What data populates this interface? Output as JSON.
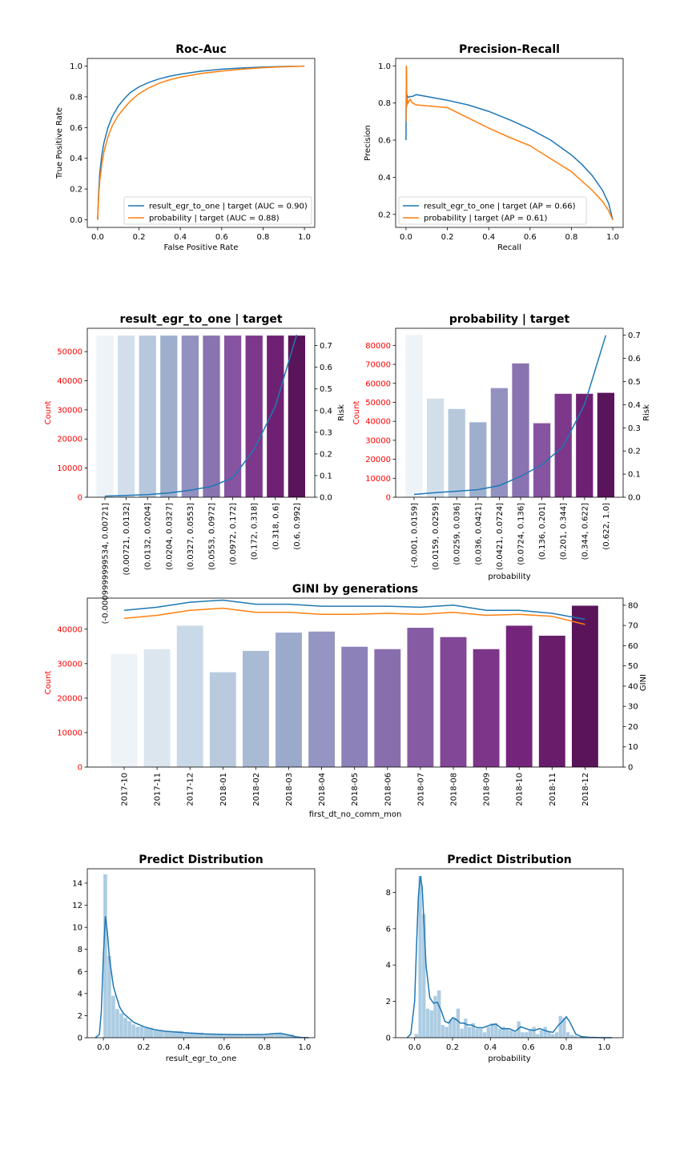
{
  "colors": {
    "blue": "#1f77b4",
    "orange": "#ff7f0e",
    "red": "#ff0000",
    "hist": "#9ec3dd",
    "kde": "#1f77b4"
  },
  "chart_data": [
    {
      "id": "roc",
      "type": "line",
      "title": "Roc-Auc",
      "xlabel": "False Positive Rate",
      "ylabel": "True Positive Rate",
      "xlim": [
        -0.05,
        1.05
      ],
      "ylim": [
        -0.05,
        1.05
      ],
      "xticks": [
        0.0,
        0.2,
        0.4,
        0.6,
        0.8,
        1.0
      ],
      "yticks": [
        0.0,
        0.2,
        0.4,
        0.6,
        0.8,
        1.0
      ],
      "tick_labels_x": [
        "0.0",
        "0.2",
        "0.4",
        "0.6",
        "0.8",
        "1.0"
      ],
      "tick_labels_y": [
        "0.0",
        "0.2",
        "0.4",
        "0.6",
        "0.8",
        "1.0"
      ],
      "legend": "lower right",
      "series": [
        {
          "name": "result_egr_to_one | target (AUC = 0.90)",
          "color": "#1f77b4",
          "x": [
            0,
            0.005,
            0.01,
            0.02,
            0.03,
            0.05,
            0.07,
            0.1,
            0.13,
            0.16,
            0.2,
            0.25,
            0.3,
            0.35,
            0.4,
            0.5,
            0.6,
            0.7,
            0.8,
            0.9,
            1.0
          ],
          "y": [
            0,
            0.18,
            0.3,
            0.42,
            0.5,
            0.6,
            0.67,
            0.74,
            0.79,
            0.83,
            0.865,
            0.895,
            0.918,
            0.935,
            0.948,
            0.967,
            0.98,
            0.988,
            0.994,
            0.998,
            1.0
          ]
        },
        {
          "name": "probability | target (AUC = 0.88)",
          "color": "#ff7f0e",
          "x": [
            0,
            0.005,
            0.01,
            0.02,
            0.03,
            0.05,
            0.07,
            0.1,
            0.13,
            0.16,
            0.2,
            0.25,
            0.3,
            0.35,
            0.4,
            0.5,
            0.6,
            0.7,
            0.8,
            0.9,
            1.0
          ],
          "y": [
            0,
            0.15,
            0.25,
            0.36,
            0.44,
            0.54,
            0.61,
            0.68,
            0.73,
            0.775,
            0.82,
            0.86,
            0.89,
            0.912,
            0.928,
            0.952,
            0.968,
            0.98,
            0.99,
            0.996,
            1.0
          ]
        }
      ]
    },
    {
      "id": "pr",
      "type": "line",
      "title": "Precision-Recall",
      "xlabel": "Recall",
      "ylabel": "Precision",
      "xlim": [
        -0.05,
        1.05
      ],
      "ylim": [
        0.13,
        1.04
      ],
      "xticks": [
        0.0,
        0.2,
        0.4,
        0.6,
        0.8,
        1.0
      ],
      "yticks": [
        0.2,
        0.4,
        0.6,
        0.8,
        1.0
      ],
      "tick_labels_x": [
        "0.0",
        "0.2",
        "0.4",
        "0.6",
        "0.8",
        "1.0"
      ],
      "tick_labels_y": [
        "0.2",
        "0.4",
        "0.6",
        "0.8",
        "1.0"
      ],
      "legend": "lower left",
      "series": [
        {
          "name": "result_egr_to_one | target (AP = 0.66)",
          "color": "#1f77b4",
          "x": [
            0,
            0.002,
            0.004,
            0.006,
            0.01,
            0.02,
            0.03,
            0.05,
            0.1,
            0.2,
            0.3,
            0.4,
            0.5,
            0.6,
            0.7,
            0.8,
            0.85,
            0.9,
            0.95,
            0.98,
            1.0
          ],
          "y": [
            0.6,
            1.0,
            0.82,
            0.84,
            0.83,
            0.835,
            0.835,
            0.845,
            0.835,
            0.815,
            0.79,
            0.755,
            0.71,
            0.66,
            0.6,
            0.52,
            0.47,
            0.41,
            0.33,
            0.26,
            0.17
          ]
        },
        {
          "name": "probability | target (AP = 0.61)",
          "color": "#ff7f0e",
          "x": [
            0,
            0.002,
            0.004,
            0.006,
            0.01,
            0.02,
            0.03,
            0.05,
            0.1,
            0.2,
            0.3,
            0.4,
            0.5,
            0.6,
            0.7,
            0.8,
            0.85,
            0.9,
            0.95,
            0.98,
            1.0
          ],
          "y": [
            0.7,
            1.0,
            0.78,
            0.82,
            0.8,
            0.82,
            0.8,
            0.79,
            0.785,
            0.775,
            0.72,
            0.665,
            0.615,
            0.57,
            0.5,
            0.43,
            0.38,
            0.33,
            0.27,
            0.22,
            0.17
          ]
        }
      ]
    },
    {
      "id": "bins1",
      "type": "bar",
      "title": "result_egr_to_one | target",
      "xlabel": "",
      "ylabel": "Count",
      "y2label": "Risk",
      "categories": [
        "(-0.0009999999534, 0.00721]",
        "(0.00721, 0.0132]",
        "(0.0132, 0.0204]",
        "(0.0204, 0.0327]",
        "(0.0327, 0.0553]",
        "(0.0553, 0.0972]",
        "(0.0972, 0.172]",
        "(0.172, 0.318]",
        "(0.318, 0.6]",
        "(0.6, 0.992]"
      ],
      "values": [
        55500,
        55500,
        55500,
        55500,
        55500,
        55500,
        55500,
        55500,
        55500,
        55500
      ],
      "risk": [
        0.005,
        0.008,
        0.012,
        0.02,
        0.032,
        0.05,
        0.09,
        0.22,
        0.42,
        0.75
      ],
      "ylim": [
        0,
        58000
      ],
      "y2lim": [
        0,
        0.78
      ],
      "yticks": [
        0,
        10000,
        20000,
        30000,
        40000,
        50000
      ],
      "y2ticks": [
        0,
        0.1,
        0.2,
        0.3,
        0.4,
        0.5,
        0.6,
        0.7
      ],
      "tick_labels_y": [
        "0",
        "10000",
        "20000",
        "30000",
        "40000",
        "50000"
      ],
      "tick_labels_y2": [
        "0.0",
        "0.1",
        "0.2",
        "0.3",
        "0.4",
        "0.5",
        "0.6",
        "0.7"
      ]
    },
    {
      "id": "bins2",
      "type": "bar",
      "title": "probability | target",
      "xlabel": "probability",
      "ylabel": "Count",
      "y2label": "Risk",
      "categories": [
        "(-0.001, 0.0159]",
        "(0.0159, 0.0259]",
        "(0.0259, 0.036]",
        "(0.036, 0.0421]",
        "(0.0421, 0.0724]",
        "(0.0724, 0.136]",
        "(0.136, 0.201]",
        "(0.201, 0.344]",
        "(0.344, 0.622]",
        "(0.622, 1.0]"
      ],
      "values": [
        85500,
        52000,
        46500,
        39500,
        57500,
        70500,
        39000,
        54500,
        54500,
        55000
      ],
      "risk": [
        0.012,
        0.02,
        0.026,
        0.033,
        0.05,
        0.09,
        0.14,
        0.22,
        0.4,
        0.7
      ],
      "ylim": [
        0,
        89000
      ],
      "y2lim": [
        0,
        0.73
      ],
      "yticks": [
        0,
        10000,
        20000,
        30000,
        40000,
        50000,
        60000,
        70000,
        80000
      ],
      "y2ticks": [
        0,
        0.1,
        0.2,
        0.3,
        0.4,
        0.5,
        0.6,
        0.7
      ],
      "tick_labels_y": [
        "0",
        "10000",
        "20000",
        "30000",
        "40000",
        "50000",
        "60000",
        "70000",
        "80000"
      ],
      "tick_labels_y2": [
        "0.0",
        "0.1",
        "0.2",
        "0.3",
        "0.4",
        "0.5",
        "0.6",
        "0.7"
      ]
    },
    {
      "id": "gini",
      "type": "bar",
      "title": "GINI by generations",
      "xlabel": "first_dt_no_comm_mon",
      "ylabel": "Count",
      "y2label": "GINI",
      "categories": [
        "2017-10",
        "2017-11",
        "2017-12",
        "2018-01",
        "2018-02",
        "2018-03",
        "2018-04",
        "2018-05",
        "2018-06",
        "2018-07",
        "2018-08",
        "2018-09",
        "2018-10",
        "2018-11",
        "2018-12"
      ],
      "values": [
        32800,
        34200,
        41000,
        27500,
        33700,
        39000,
        39300,
        34900,
        34200,
        40400,
        37700,
        34200,
        41000,
        38100,
        46800
      ],
      "series": [
        {
          "name": "",
          "color": "#1f77b4",
          "values": [
            77.5,
            79,
            81.5,
            82.5,
            80.5,
            80.5,
            79.5,
            79.5,
            79.5,
            79,
            80,
            77.5,
            77.5,
            76,
            73
          ]
        },
        {
          "name": "",
          "color": "#ff7f0e",
          "values": [
            73.5,
            75,
            77.5,
            78.5,
            76.5,
            76.5,
            75.5,
            75.5,
            76,
            75.5,
            76.5,
            75,
            75.5,
            74.5,
            70.5
          ]
        }
      ],
      "ylim": [
        0,
        49000
      ],
      "y2lim": [
        0,
        83.5
      ],
      "yticks": [
        0,
        10000,
        20000,
        30000,
        40000
      ],
      "y2ticks": [
        0,
        10,
        20,
        30,
        40,
        50,
        60,
        70,
        80
      ],
      "tick_labels_y": [
        "0",
        "10000",
        "20000",
        "30000",
        "40000"
      ],
      "tick_labels_y2": [
        "0",
        "10",
        "20",
        "30",
        "40",
        "50",
        "60",
        "70",
        "80"
      ]
    },
    {
      "id": "dist1",
      "type": "area",
      "title": "Predict Distribution",
      "xlabel": "result_egr_to_one",
      "ylabel": "",
      "xlim": [
        -0.08,
        1.05
      ],
      "ylim": [
        0,
        15.3
      ],
      "xticks": [
        0.0,
        0.2,
        0.4,
        0.6,
        0.8,
        1.0
      ],
      "yticks": [
        0,
        2,
        4,
        6,
        8,
        10,
        12,
        14
      ],
      "tick_labels_x": [
        "0.0",
        "0.2",
        "0.4",
        "0.6",
        "0.8",
        "1.0"
      ],
      "tick_labels_y": [
        "0",
        "2",
        "4",
        "6",
        "8",
        "10",
        "12",
        "14"
      ],
      "hist_bin_width": 0.02,
      "hist_x": [
        0.0,
        0.02,
        0.04,
        0.06,
        0.08,
        0.1,
        0.12,
        0.14,
        0.16,
        0.18,
        0.2,
        0.25,
        0.3,
        0.4,
        0.5,
        0.6,
        0.7,
        0.8,
        0.85,
        0.9,
        0.95
      ],
      "hist_y": [
        14.8,
        7.4,
        3.8,
        2.6,
        2.2,
        1.8,
        1.5,
        1.2,
        1.0,
        1.0,
        0.9,
        0.7,
        0.6,
        0.45,
        0.35,
        0.3,
        0.28,
        0.35,
        0.4,
        0.3,
        0.1
      ],
      "kde_x": [
        -0.04,
        -0.02,
        -0.01,
        0.0,
        0.01,
        0.02,
        0.03,
        0.05,
        0.08,
        0.1,
        0.15,
        0.2,
        0.25,
        0.3,
        0.4,
        0.5,
        0.6,
        0.7,
        0.8,
        0.85,
        0.88,
        0.92,
        0.95,
        0.98,
        1.0,
        1.02
      ],
      "kde_y": [
        0,
        0.3,
        2.5,
        7.5,
        11.0,
        9.5,
        7.2,
        4.6,
        2.8,
        2.2,
        1.4,
        1.0,
        0.75,
        0.6,
        0.45,
        0.35,
        0.3,
        0.28,
        0.3,
        0.38,
        0.4,
        0.25,
        0.1,
        0.03,
        0.01,
        0
      ]
    },
    {
      "id": "dist2",
      "type": "area",
      "title": "Predict Distribution",
      "xlabel": "probability",
      "ylabel": "",
      "xlim": [
        -0.1,
        1.1
      ],
      "ylim": [
        0,
        9.3
      ],
      "xticks": [
        0.0,
        0.2,
        0.4,
        0.6,
        0.8,
        1.0
      ],
      "yticks": [
        0,
        2,
        4,
        6,
        8
      ],
      "tick_labels_x": [
        "0.0",
        "0.2",
        "0.4",
        "0.6",
        "0.8",
        "1.0"
      ],
      "tick_labels_y": [
        "0",
        "2",
        "4",
        "6",
        "8"
      ],
      "hist_bin_width": 0.02,
      "hist_x": [
        0.0,
        0.02,
        0.04,
        0.06,
        0.08,
        0.1,
        0.12,
        0.14,
        0.16,
        0.18,
        0.2,
        0.22,
        0.24,
        0.26,
        0.28,
        0.3,
        0.32,
        0.34,
        0.36,
        0.38,
        0.4,
        0.42,
        0.44,
        0.46,
        0.48,
        0.5,
        0.52,
        0.54,
        0.56,
        0.58,
        0.6,
        0.62,
        0.64,
        0.66,
        0.68,
        0.7,
        0.72,
        0.74,
        0.76,
        0.78,
        0.8,
        0.82,
        0.84,
        0.86,
        0.88,
        0.9
      ],
      "hist_y": [
        0.2,
        8.9,
        6.8,
        1.6,
        1.5,
        2.3,
        2.6,
        0.7,
        0.6,
        1.0,
        1.1,
        1.6,
        0.5,
        1.05,
        0.6,
        0.8,
        0.5,
        0.5,
        0.3,
        0.6,
        0.8,
        0.8,
        0.5,
        0.6,
        0.5,
        0.4,
        0.3,
        0.9,
        0.3,
        0.3,
        0.4,
        0.6,
        0.2,
        0.4,
        0.6,
        0.3,
        0.2,
        0.3,
        1.2,
        1.1,
        0.3,
        0.15,
        0.1,
        0.05,
        0.05,
        0.02
      ],
      "kde_x": [
        -0.04,
        -0.02,
        0.0,
        0.01,
        0.02,
        0.03,
        0.04,
        0.05,
        0.06,
        0.08,
        0.1,
        0.12,
        0.14,
        0.16,
        0.18,
        0.2,
        0.22,
        0.24,
        0.26,
        0.28,
        0.3,
        0.33,
        0.36,
        0.4,
        0.43,
        0.46,
        0.5,
        0.53,
        0.56,
        0.6,
        0.63,
        0.66,
        0.7,
        0.73,
        0.76,
        0.78,
        0.8,
        0.82,
        0.85,
        0.88,
        0.92,
        1.0,
        1.04
      ],
      "kde_y": [
        0,
        0.2,
        2.0,
        5.0,
        7.8,
        8.9,
        8.3,
        6.2,
        4.0,
        2.2,
        1.9,
        1.95,
        1.5,
        0.9,
        0.8,
        1.1,
        1.0,
        0.8,
        0.8,
        0.7,
        0.7,
        0.55,
        0.55,
        0.7,
        0.75,
        0.5,
        0.5,
        0.35,
        0.6,
        0.45,
        0.4,
        0.5,
        0.35,
        0.3,
        0.7,
        0.9,
        1.15,
        0.85,
        0.2,
        0.06,
        0.02,
        0,
        0
      ]
    }
  ]
}
